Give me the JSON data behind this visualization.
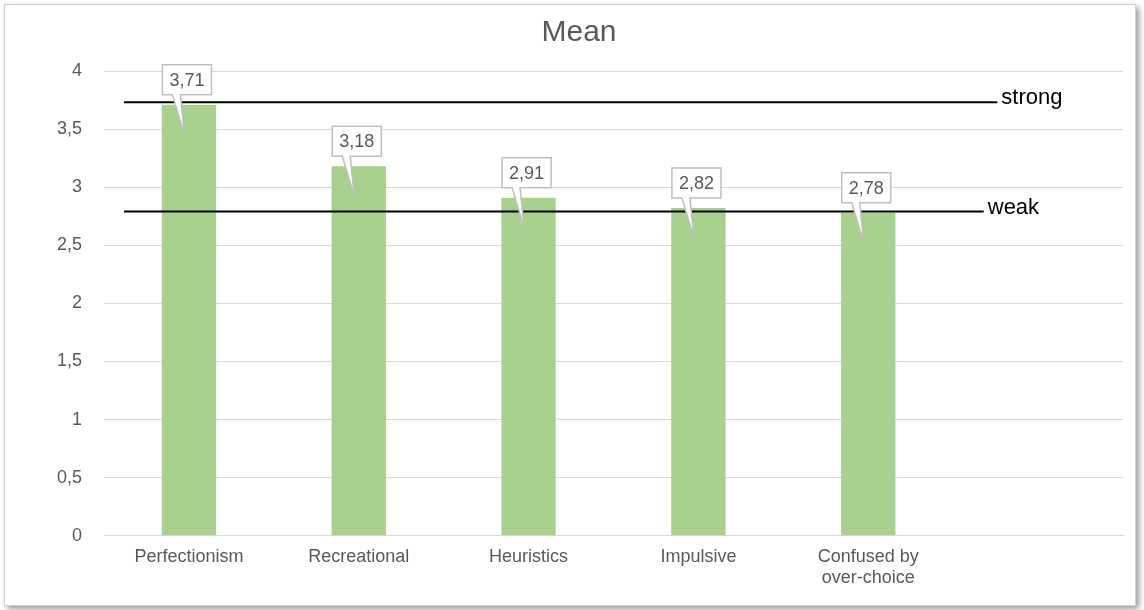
{
  "chart_data": {
    "type": "bar",
    "title": "Mean",
    "categories": [
      "Perfectionism",
      "Recreational",
      "Heuristics",
      "Impulsive",
      "Confused by over-choice",
      null
    ],
    "values": [
      3.71,
      3.18,
      2.91,
      2.82,
      2.78,
      null
    ],
    "value_labels": [
      "3,71",
      "3,18",
      "2,91",
      "2,82",
      "2,78",
      null
    ],
    "color": "#a9d18e",
    "ylim": [
      0,
      4
    ],
    "yticks": [
      0,
      {
        "value": 0.5,
        "label": "0,5"
      },
      1,
      {
        "value": 1.5,
        "label": "1,5"
      },
      2,
      {
        "value": 2.5,
        "label": "2,5"
      },
      3,
      {
        "value": 3.5,
        "label": "3,5"
      },
      4
    ],
    "grid": "y",
    "legend": false,
    "ref_lines": [
      {
        "axis": "y",
        "value": 3.73,
        "label": "strong",
        "color": "#000000"
      },
      {
        "axis": "y",
        "value": 2.79,
        "label": "weak",
        "color": "#000000"
      }
    ]
  }
}
